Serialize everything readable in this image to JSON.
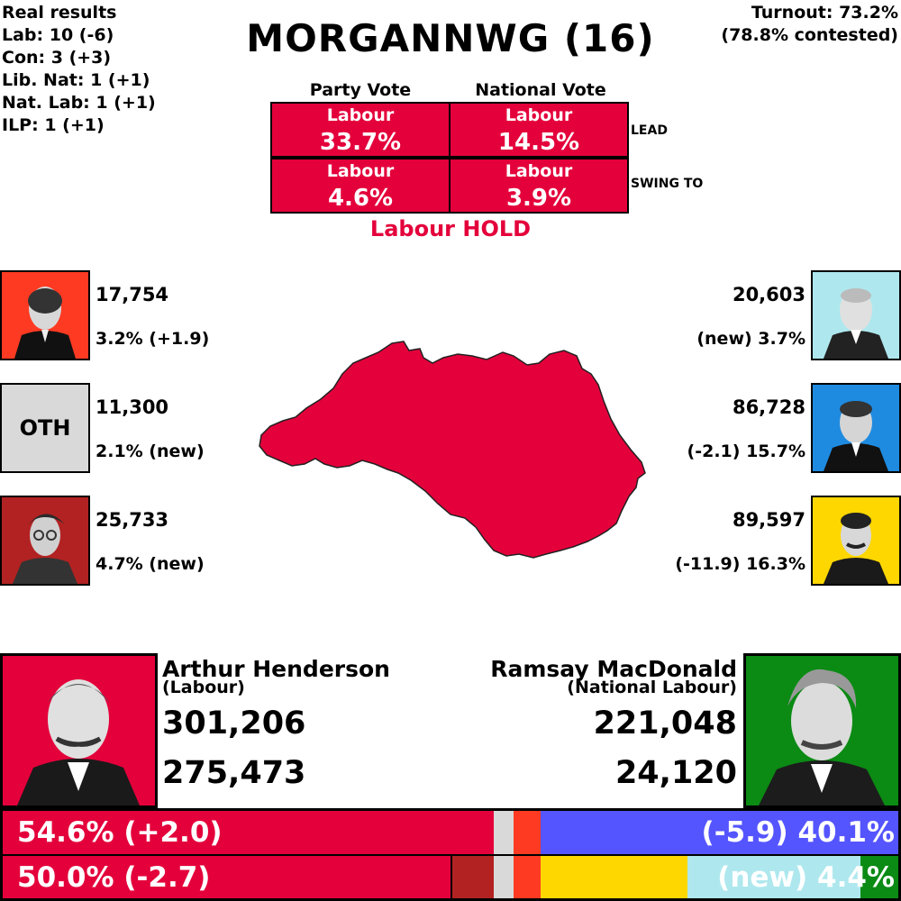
{
  "real_results": {
    "heading": "Real results",
    "lines": [
      "Lab: 10 (-6)",
      "Con: 3 (+3)",
      "Lib. Nat: 1 (+1)",
      "Nat. Lab: 1 (+1)",
      "ILP: 1 (+1)"
    ]
  },
  "turnout": {
    "line1": "Turnout: 73.2%",
    "line2": "(78.8% contested)"
  },
  "title": "MORGANNWG (16)",
  "summary": {
    "col_party": "Party Vote",
    "col_national": "National Vote",
    "lead": {
      "party_label": "Labour",
      "party_value": "33.7%",
      "national_label": "Labour",
      "national_value": "14.5%",
      "tag": "LEAD"
    },
    "swing": {
      "party_label": "Labour",
      "party_value": "4.6%",
      "national_label": "Labour",
      "national_value": "3.9%",
      "tag": "SWING TO"
    },
    "result": "Labour HOLD"
  },
  "left_parties": [
    {
      "votes": "17,754",
      "pct": "3.2% (+1.9)",
      "color": "#ff3a22",
      "icon": "portrait"
    },
    {
      "votes": "11,300",
      "pct": "2.1% (new)",
      "color": "#d9d9d9",
      "label": "OTH"
    },
    {
      "votes": "25,733",
      "pct": "4.7% (new)",
      "color": "#b22222",
      "icon": "portrait"
    }
  ],
  "right_parties": [
    {
      "votes": "20,603",
      "pct": "(new) 3.7%",
      "color": "#aee8ee",
      "icon": "portrait"
    },
    {
      "votes": "86,728",
      "pct": "(-2.1) 15.7%",
      "color": "#1f8be0",
      "icon": "portrait"
    },
    {
      "votes": "89,597",
      "pct": "(-11.9) 16.3%",
      "color": "#ffd700",
      "icon": "portrait"
    }
  ],
  "map": {
    "color": "#e4003b"
  },
  "leaders": {
    "left": {
      "name": "Arthur Henderson",
      "party": "(Labour)",
      "votes1": "301,206",
      "votes2": "275,473",
      "color": "#e4003b"
    },
    "right": {
      "name": "Ramsay MacDonald",
      "party": "(National Labour)",
      "votes1": "221,048",
      "votes2": "24,120",
      "color": "#0b8a14"
    }
  },
  "bars": {
    "top_left_text": "54.6% (+2.0)",
    "top_right_text": "(-5.9) 40.1%",
    "bottom_left_text": "50.0% (-2.7)",
    "bottom_right_text": "(new) 4.4%",
    "colors": {
      "labour": "#e4003b",
      "national": "#5555ff",
      "ilp": "#b22222",
      "oth": "#d9d9d9",
      "communist": "#ff3a22",
      "libnat": "#ffd700",
      "national_liberal": "#aee8ee",
      "national_labour": "#0b8a14"
    },
    "top_shares": {
      "labour": 54.6,
      "oth": 2.1,
      "communist": 3.2,
      "national": 40.1
    },
    "bottom_shares": {
      "labour": 50.0,
      "ilp": 4.7,
      "oth": 2.1,
      "communist": 3.2,
      "libnat": 16.3,
      "national_liberal": 3.7,
      "national_labour": 4.4
    }
  }
}
